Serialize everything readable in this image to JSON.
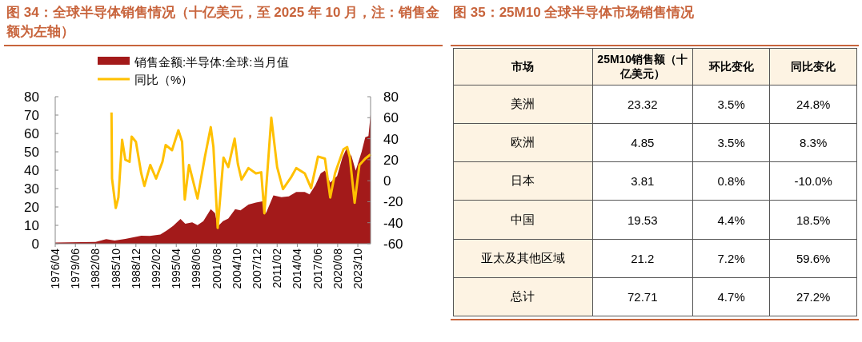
{
  "chart_data": [
    {
      "type": "area",
      "title": "图 34：全球半导体销售情况（十亿美元，至 2025 年 10 月，注：销售金额为左轴）",
      "legend": "top",
      "xlim": [
        "1976-04",
        "2025-10"
      ],
      "xticks": [
        {
          "value": "1976-04",
          "label": "1976/04"
        },
        {
          "value": "1979-06",
          "label": "1979/06"
        },
        {
          "value": "1982-08",
          "label": "1982/08"
        },
        {
          "value": "1985-10",
          "label": "1985/10"
        },
        {
          "value": "1988-12",
          "label": "1988/12"
        },
        {
          "value": "1992-02",
          "label": "1992/02"
        },
        {
          "value": "1995-04",
          "label": "1995/04"
        },
        {
          "value": "1998-06",
          "label": "1998/06"
        },
        {
          "value": "2001-08",
          "label": "2001/08"
        },
        {
          "value": "2004-10",
          "label": "2004/10"
        },
        {
          "value": "2007-12",
          "label": "2007/12"
        },
        {
          "value": "2011-02",
          "label": "2011/02"
        },
        {
          "value": "2014-04",
          "label": "2014/04"
        },
        {
          "value": "2017-06",
          "label": "2017/06"
        },
        {
          "value": "2020-08",
          "label": "2020/08"
        },
        {
          "value": "2023-10",
          "label": "2023/10"
        }
      ],
      "ylim": [
        0,
        80
      ],
      "yticks": [
        0,
        10,
        20,
        30,
        40,
        50,
        60,
        70,
        80
      ],
      "y2lim": [
        -60,
        80
      ],
      "y2ticks": [
        -60,
        -40,
        -20,
        0,
        20,
        40,
        60,
        80
      ],
      "series": [
        {
          "name": "销售金额:半导体:全球:当月值",
          "type": "area",
          "color": "#a31a1a",
          "x": [
            "1976-04",
            "1982-08",
            "1984-04",
            "1985-08",
            "1987-04",
            "1989-10",
            "1991-02",
            "1992-10",
            "1993-10",
            "1994-10",
            "1995-12",
            "1996-09",
            "1997-10",
            "1998-08",
            "1999-07",
            "2000-09",
            "2001-05",
            "2001-10",
            "2002-08",
            "2003-06",
            "2004-07",
            "2005-05",
            "2006-08",
            "2007-10",
            "2008-12",
            "2009-05",
            "2010-07",
            "2011-10",
            "2012-12",
            "2014-02",
            "2015-06",
            "2016-03",
            "2017-02",
            "2017-12",
            "2018-08",
            "2019-06",
            "2020-07",
            "2021-05",
            "2021-12",
            "2022-10",
            "2023-06",
            "2024-05",
            "2024-12",
            "2025-06",
            "2025-10"
          ],
          "values": [
            0.6,
            1,
            2.5,
            1.7,
            2.6,
            4.3,
            4.2,
            5,
            7.2,
            9.7,
            13.5,
            10.9,
            11.6,
            10.1,
            12.3,
            18.8,
            16.6,
            9.4,
            12.3,
            13.7,
            18.8,
            18.1,
            21.3,
            22.4,
            23.1,
            16.6,
            26.3,
            25.3,
            25.8,
            28.2,
            28.2,
            26.8,
            31.8,
            38.3,
            39.8,
            33.3,
            36.9,
            47,
            51.4,
            47.7,
            39.8,
            49.9,
            57.9,
            58.6,
            70.2
          ]
        },
        {
          "name": "同比（%）",
          "type": "line",
          "axis": "y2",
          "color": "#ffc000",
          "x": [
            "1985-02",
            "1985-03",
            "1985-10",
            "1986-03",
            "1986-10",
            "1987-04",
            "1987-12",
            "1988-04",
            "1988-12",
            "1989-10",
            "1990-04",
            "1991-03",
            "1992-02",
            "1993-02",
            "1993-08",
            "1994-08",
            "1995-08",
            "1996-03",
            "1996-08",
            "1997-04",
            "1998-08",
            "1999-10",
            "2000-09",
            "2001-02",
            "2001-10",
            "2002-09",
            "2003-06",
            "2004-06",
            "2004-12",
            "2005-07",
            "2006-08",
            "2007-10",
            "2008-08",
            "2009-02",
            "2010-03",
            "2011-02",
            "2012-01",
            "2013-04",
            "2014-02",
            "2015-06",
            "2016-06",
            "2017-07",
            "2018-08",
            "2019-06",
            "2020-03",
            "2021-07",
            "2022-02",
            "2022-07",
            "2023-04",
            "2024-01",
            "2024-12",
            "2025-10"
          ],
          "values": [
            65,
            2,
            -26,
            -16,
            39,
            20,
            18,
            42,
            37,
            7,
            -5,
            15,
            2,
            18,
            34,
            29,
            48,
            37,
            -18,
            15,
            -17,
            23,
            51,
            32,
            -45,
            22,
            13,
            40,
            16,
            1,
            12,
            7,
            8,
            -31,
            60,
            13,
            -8,
            3,
            12,
            7,
            -7,
            23,
            21,
            -16,
            7,
            30,
            32,
            22,
            -21,
            15,
            21,
            25
          ]
        }
      ]
    },
    {
      "type": "other",
      "title": "图 35：25M10 全球半导体市场销售情况",
      "categories": [
        "市场",
        "25M10销售额（十亿美元）",
        "环比变化",
        "同比变化"
      ],
      "y_categories": [
        "美洲",
        "欧洲",
        "日本",
        "中国",
        "亚太及其他区域",
        "总计"
      ],
      "cell_labels": [
        [
          "23.32",
          "3.5%",
          "24.8%"
        ],
        [
          "4.85",
          "3.5%",
          "8.3%"
        ],
        [
          "3.81",
          "0.8%",
          "-10.0%"
        ],
        [
          "19.53",
          "4.4%",
          "18.5%"
        ],
        [
          "21.2",
          "7.2%",
          "59.6%"
        ],
        [
          "72.71",
          "4.7%",
          "27.2%"
        ]
      ]
    }
  ]
}
